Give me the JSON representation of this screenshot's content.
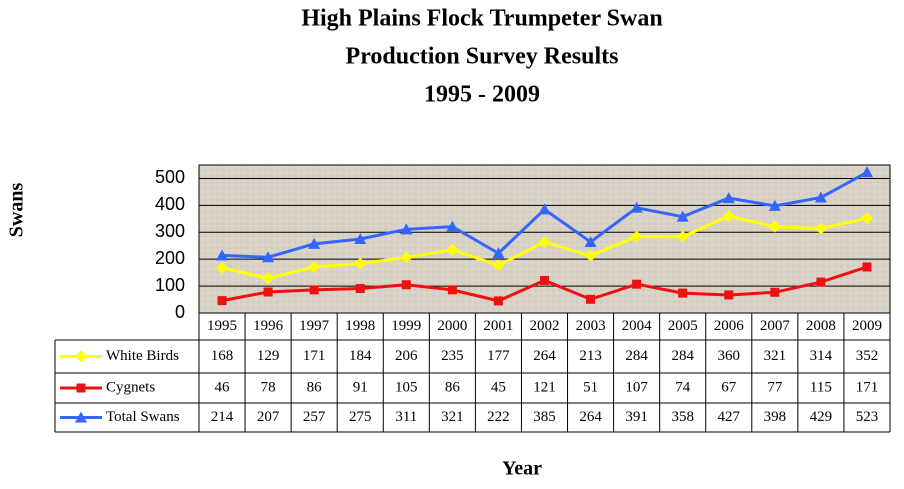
{
  "chart_data": {
    "type": "line",
    "title": [
      "High Plains Flock Trumpeter Swan",
      "Production Survey Results",
      "1995 - 2009"
    ],
    "y_label": "Swans",
    "x_label": "Year",
    "categories": [
      "1995",
      "1996",
      "1997",
      "1998",
      "1999",
      "2000",
      "2001",
      "2002",
      "2003",
      "2004",
      "2005",
      "2006",
      "2007",
      "2008",
      "2009"
    ],
    "series": [
      {
        "name": "White Birds",
        "color": "#ffff00",
        "marker": "diamond",
        "values": [
          168,
          129,
          171,
          184,
          206,
          235,
          177,
          264,
          213,
          284,
          284,
          360,
          321,
          314,
          352
        ]
      },
      {
        "name": "Cygnets",
        "color": "#ee1111",
        "marker": "square",
        "values": [
          46,
          78,
          86,
          91,
          105,
          86,
          45,
          121,
          51,
          107,
          74,
          67,
          77,
          115,
          171
        ]
      },
      {
        "name": "Total Swans",
        "color": "#3366ff",
        "marker": "triangle",
        "values": [
          214,
          207,
          257,
          275,
          311,
          321,
          222,
          385,
          264,
          391,
          358,
          427,
          398,
          429,
          523
        ]
      }
    ],
    "ylim": [
      0,
      550
    ],
    "yticks": [
      0,
      100,
      200,
      300,
      400,
      500
    ],
    "grid": true,
    "data_table": true
  }
}
